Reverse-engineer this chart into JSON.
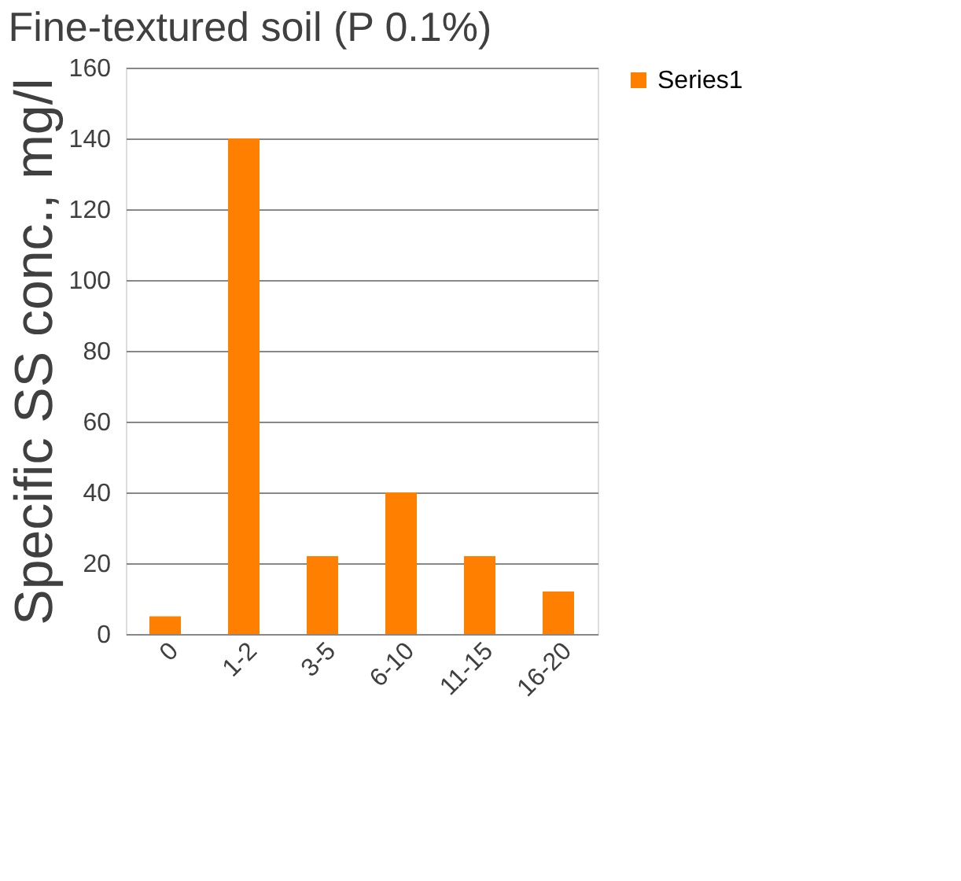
{
  "chart_data": {
    "type": "bar",
    "title": "Fine-textured soil (P 0.1%)",
    "ylabel": "Specific SS conc., mg/l",
    "categories": [
      "0",
      "1-2",
      "3-5",
      "6-10",
      "11-15",
      "16-20"
    ],
    "series": [
      {
        "name": "Series1",
        "color": "#ff8000",
        "values": [
          5,
          140,
          22,
          40,
          22,
          12
        ]
      }
    ],
    "ylim": [
      0,
      160
    ],
    "yticks": [
      0,
      20,
      40,
      60,
      80,
      100,
      120,
      140,
      160
    ],
    "grid": "y",
    "legend": "right"
  }
}
